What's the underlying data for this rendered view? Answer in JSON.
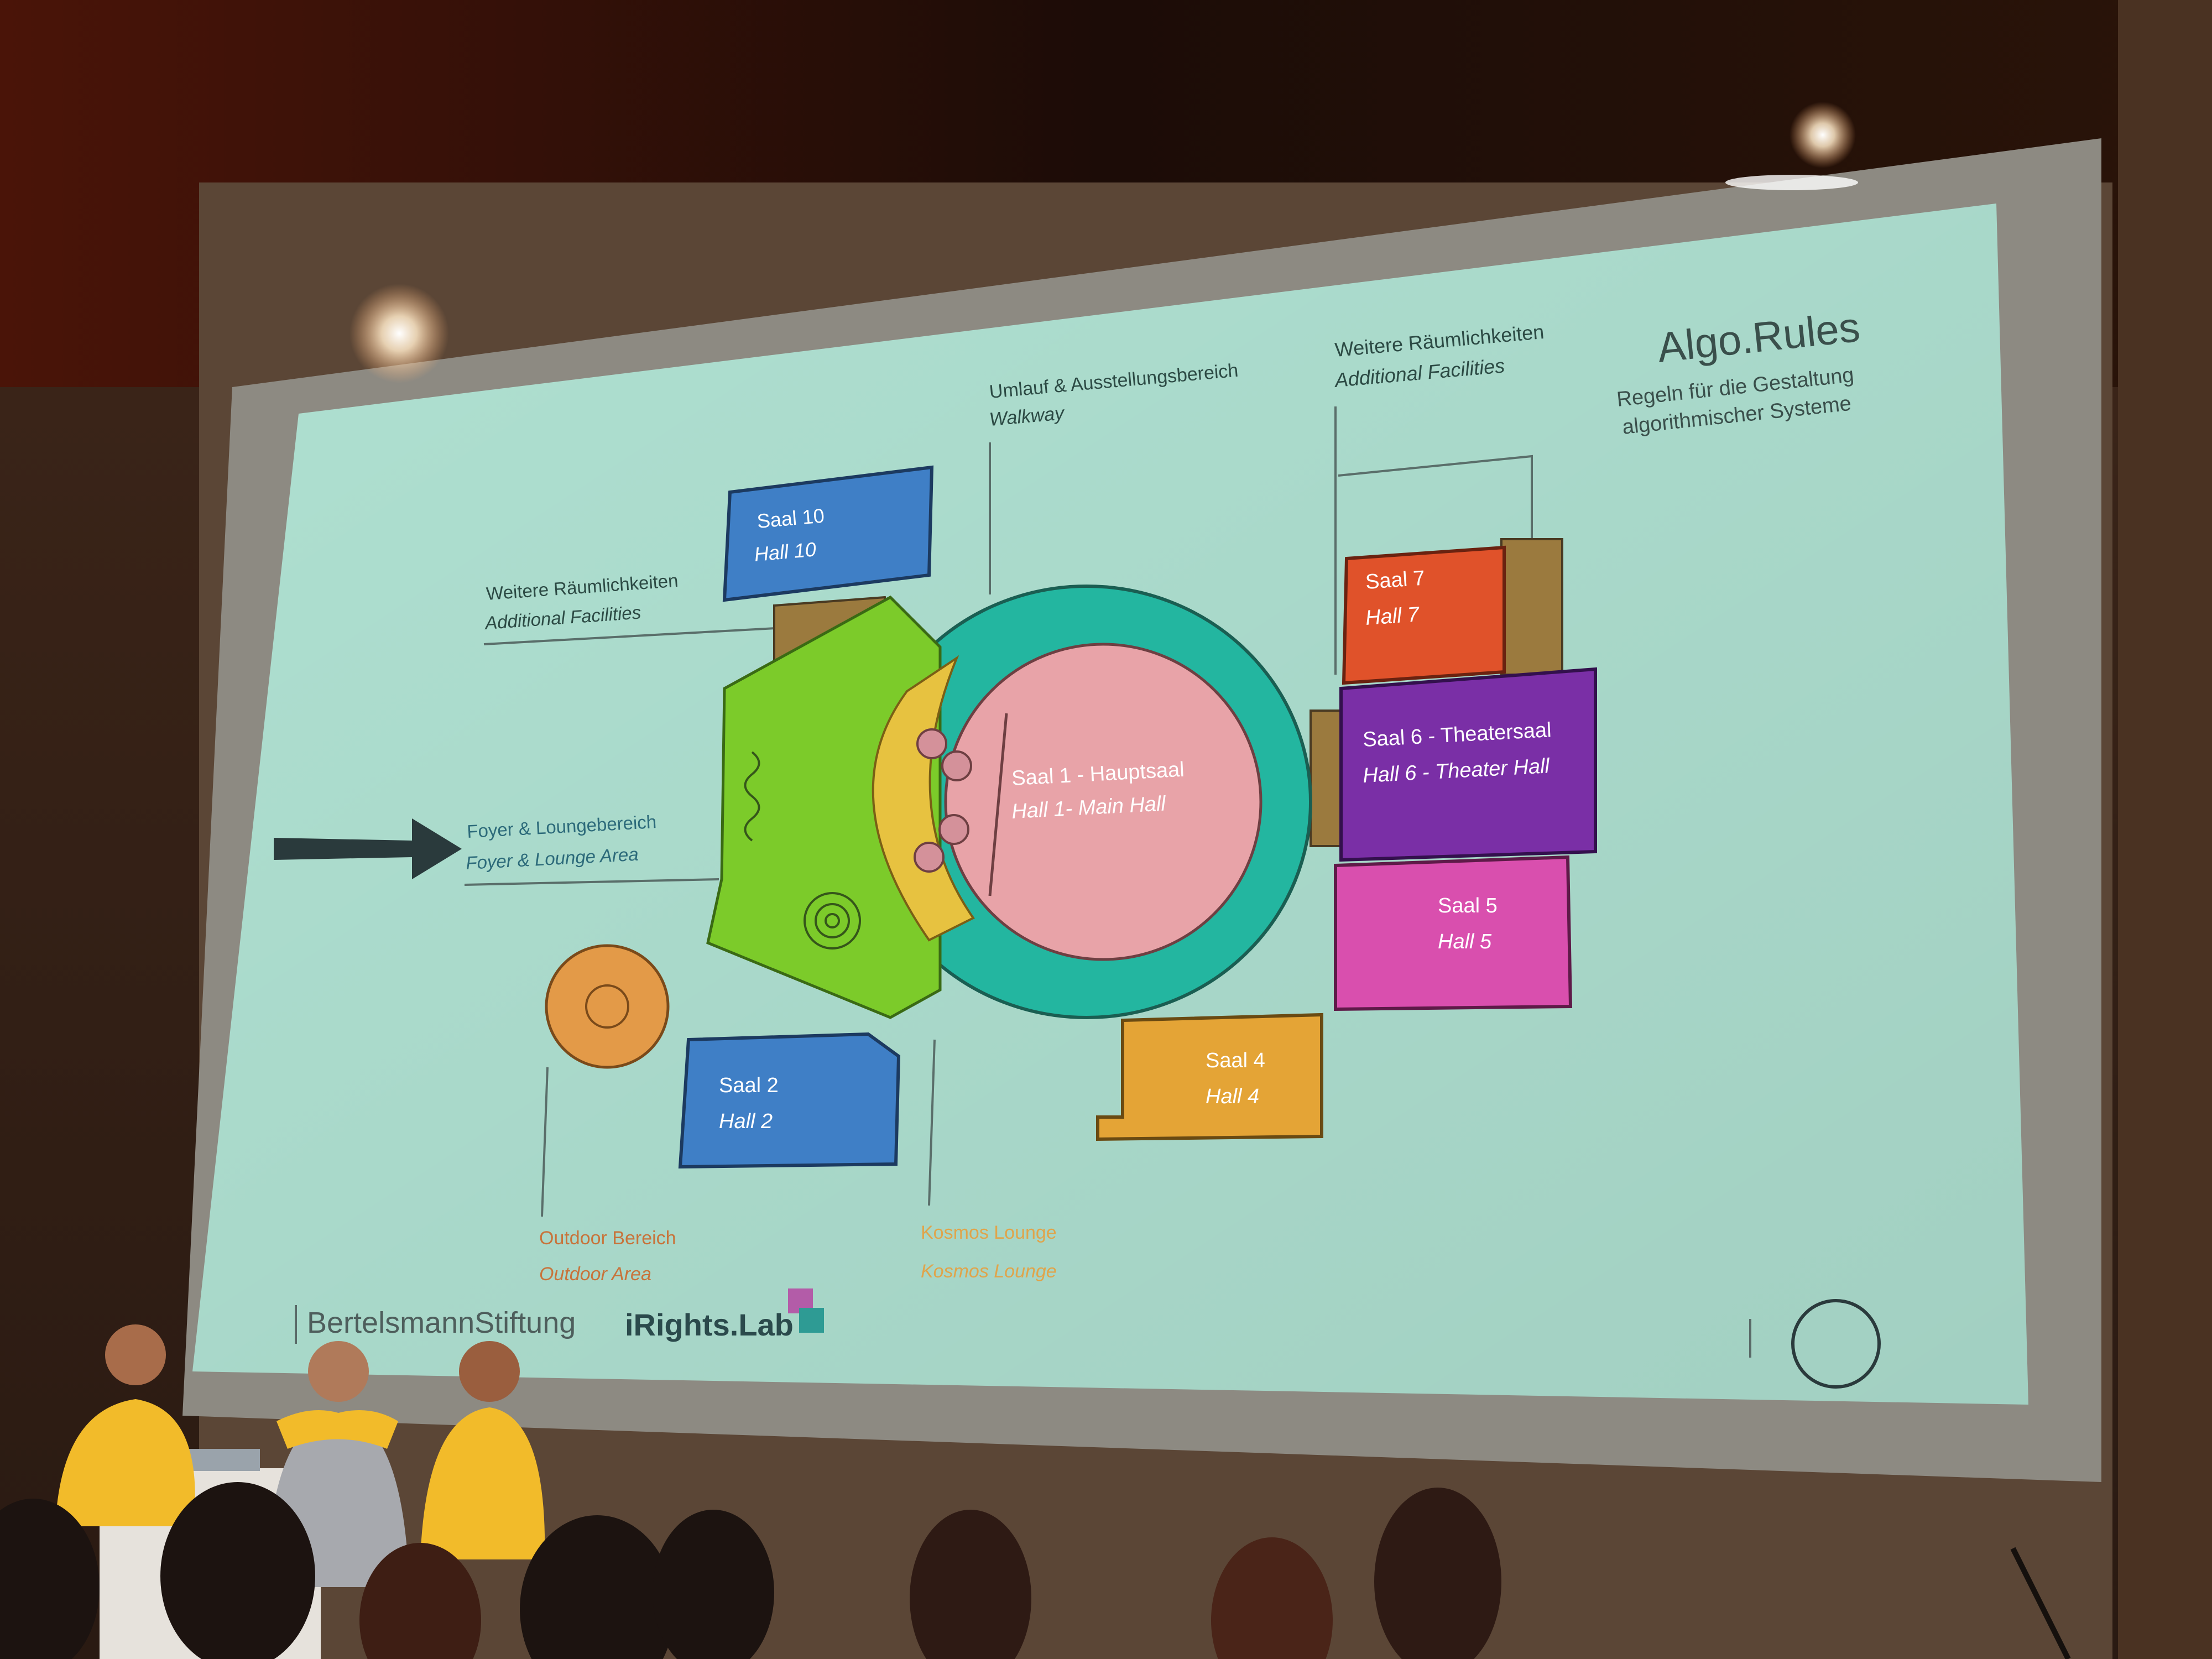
{
  "slide": {
    "brand": {
      "title": "Algo.Rules",
      "subtitle_line1": "Regeln für die Gestaltung",
      "subtitle_line2": "algorithmischer Systeme"
    },
    "halls": {
      "saal10": {
        "de": "Saal 10",
        "en": "Hall 10"
      },
      "saal7": {
        "de": "Saal 7",
        "en": "Hall 7"
      },
      "saal6": {
        "de": "Saal 6 - Theatersaal",
        "en": "Hall 6 - Theater Hall"
      },
      "saal5": {
        "de": "Saal 5",
        "en": "Hall 5"
      },
      "saal4": {
        "de": "Saal 4",
        "en": "Hall 4"
      },
      "saal2": {
        "de": "Saal 2",
        "en": "Hall 2"
      },
      "saal1": {
        "de": "Saal 1 - Hauptsaal",
        "en": "Hall 1- Main Hall"
      }
    },
    "annotations": {
      "walkway": {
        "de": "Umlauf & Ausstellungsbereich",
        "en": "Walkway"
      },
      "facilities_top": {
        "de": "Weitere Räumlichkeiten",
        "en": "Additional Facilities"
      },
      "facilities_left": {
        "de": "Weitere Räumlichkeiten",
        "en": "Additional Facilities"
      },
      "foyer": {
        "de": "Foyer & Loungebereich",
        "en": "Foyer & Lounge Area"
      },
      "outdoor": {
        "de": "Outdoor Bereich",
        "en": "Outdoor Area"
      },
      "kosmos": {
        "de": "Kosmos Lounge",
        "en": "Kosmos Lounge"
      }
    },
    "footer": {
      "logo_left": "BertelsmannStiftung",
      "logo_right": "iRights.Lab"
    }
  },
  "colors": {
    "slide_bg": "#b8ecdc",
    "hall10": "#3f7fc6",
    "hall7": "#e0522a",
    "hall6": "#7a2fa6",
    "hall5": "#d94fae",
    "hall4": "#e4a436",
    "hall2": "#3f7fc6",
    "hall1": "#e8a3a8",
    "walkway_ring": "#23b6a0",
    "foyer": "#7ccb2a",
    "seating": "#e7c240",
    "facilities": "#9b7a3e",
    "outdoor": "#e39a48"
  }
}
